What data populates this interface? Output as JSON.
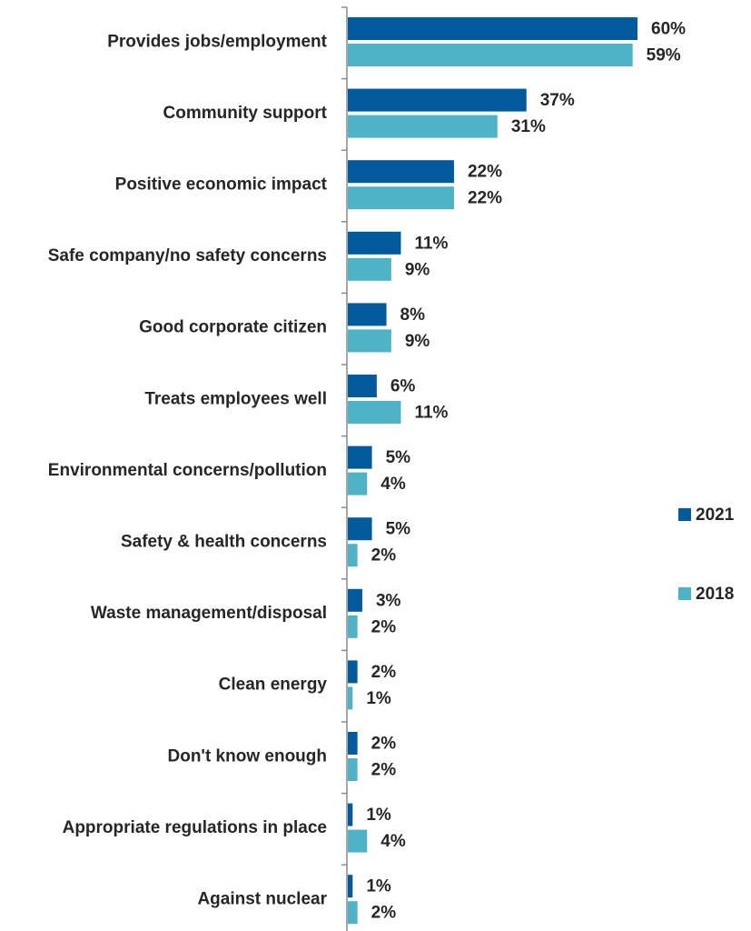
{
  "chart_data": {
    "type": "bar",
    "orientation": "horizontal",
    "categories": [
      "Provides jobs/employment",
      "Community support",
      "Positive economic impact",
      "Safe company/no safety concerns",
      "Good corporate citizen",
      "Treats employees well",
      "Environmental concerns/pollution",
      "Safety & health concerns",
      "Waste management/disposal",
      "Clean energy",
      "Don't know enough",
      "Appropriate regulations in place",
      "Against nuclear"
    ],
    "series": [
      {
        "name": "2021",
        "color": "#005a9c",
        "values": [
          60,
          37,
          22,
          11,
          8,
          6,
          5,
          5,
          3,
          2,
          2,
          1,
          1
        ]
      },
      {
        "name": "2018",
        "color": "#4fb3c8",
        "values": [
          59,
          31,
          22,
          9,
          9,
          11,
          4,
          2,
          2,
          1,
          2,
          4,
          2
        ]
      }
    ],
    "value_suffix": "%",
    "xlim": [
      0,
      60
    ],
    "grid": false,
    "legend_position": "right"
  }
}
